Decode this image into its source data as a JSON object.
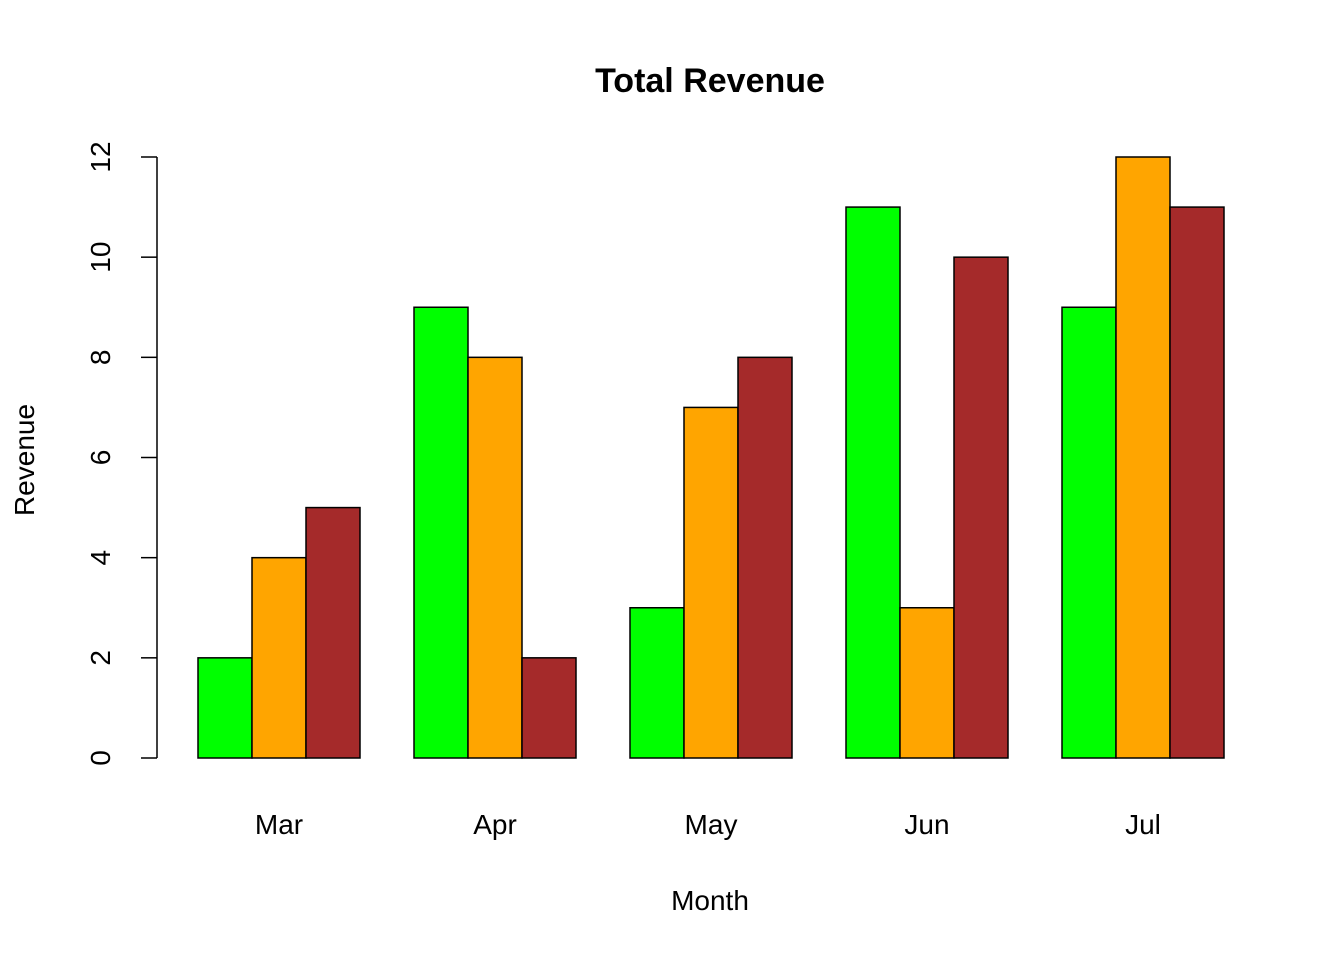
{
  "chart_data": {
    "type": "bar",
    "title": "Total Revenue",
    "xlabel": "Month",
    "ylabel": "Revenue",
    "categories": [
      "Mar",
      "Apr",
      "May",
      "Jun",
      "Jul"
    ],
    "series": [
      {
        "color": "#00ff00",
        "values": [
          2,
          9,
          3,
          11,
          9
        ]
      },
      {
        "color": "#ffa500",
        "values": [
          4,
          8,
          7,
          3,
          12
        ]
      },
      {
        "color": "#a52a2a",
        "values": [
          5,
          2,
          8,
          10,
          11
        ]
      }
    ],
    "ylim": [
      0,
      12
    ],
    "yticks": [
      0,
      2,
      4,
      6,
      8,
      10,
      12
    ],
    "grid": false,
    "legend": "none",
    "bar_outline_color": "#000000"
  }
}
